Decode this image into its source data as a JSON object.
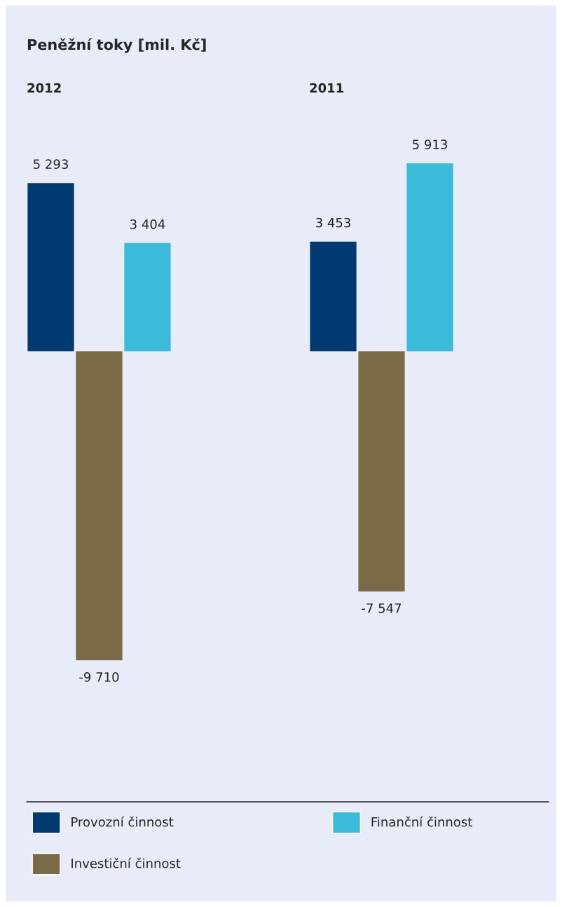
{
  "chart_data": [
    {
      "type": "bar",
      "title": "Peněžní toky [mil. Kč]",
      "subtitle": "2012",
      "categories": [
        null
      ],
      "legend": "bottom",
      "series": [
        {
          "name": "Provozní činnost",
          "color": "#003a70",
          "values": [
            5293
          ],
          "value_labels": [
            "5 293"
          ]
        },
        {
          "name": "Investiční činnost",
          "color": "#7a6a48",
          "values": [
            -9710
          ],
          "value_labels": [
            "-9 710"
          ]
        },
        {
          "name": "Finanční činnost",
          "color": "#3bbad9",
          "values": [
            3404
          ],
          "value_labels": [
            "3 404"
          ]
        }
      ]
    },
    {
      "type": "bar",
      "subtitle": "2011",
      "categories": [
        null
      ],
      "series": [
        {
          "color": "#003a70",
          "values": [
            3453
          ],
          "value_labels": [
            "3 453"
          ]
        },
        {
          "color": "#7a6a48",
          "values": [
            -7547
          ],
          "value_labels": [
            "-7 547"
          ]
        },
        {
          "color": "#3bbad9",
          "values": [
            5913
          ],
          "value_labels": [
            "5 913"
          ]
        }
      ]
    }
  ]
}
